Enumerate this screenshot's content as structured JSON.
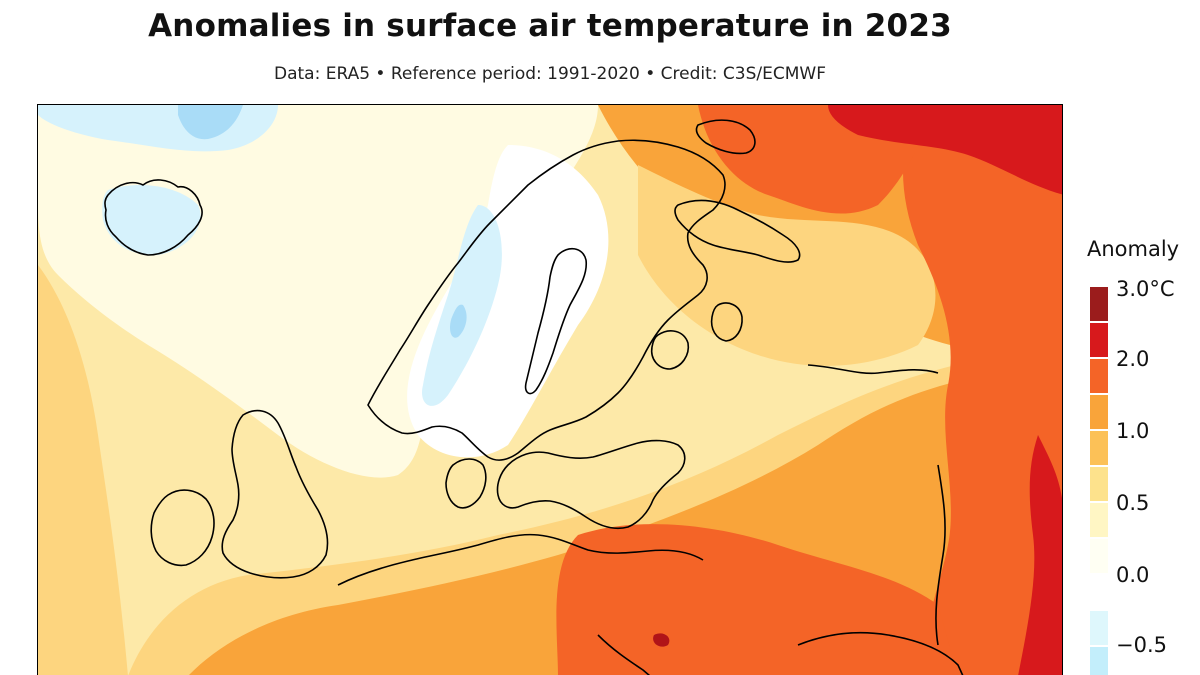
{
  "title": "Anomalies in surface air temperature in 2023",
  "subtitle": "Data: ERA5 • Reference period: 1991-2020 • Credit: C3S/ECMWF",
  "legend": {
    "title": "Anomaly",
    "labels": [
      "3.0°C",
      "2.0",
      "1.0",
      "0.5",
      "0.0",
      "−0.5"
    ],
    "bins": [
      {
        "from": 2.5,
        "to": 3.0,
        "color": "#9b1c1c"
      },
      {
        "from": 2.0,
        "to": 2.5,
        "color": "#d7191c"
      },
      {
        "from": 1.5,
        "to": 2.0,
        "color": "#f46427"
      },
      {
        "from": 1.0,
        "to": 1.5,
        "color": "#f9a43a"
      },
      {
        "from": 0.75,
        "to": 1.0,
        "color": "#fcc157"
      },
      {
        "from": 0.5,
        "to": 0.75,
        "color": "#fde28c"
      },
      {
        "from": 0.25,
        "to": 0.5,
        "color": "#fff6c4"
      },
      {
        "from": 0.0,
        "to": 0.25,
        "color": "#fffff3"
      },
      {
        "from": -0.25,
        "to": 0.0,
        "color": "#ffffff"
      },
      {
        "from": -0.5,
        "to": -0.25,
        "color": "#def7fc"
      },
      {
        "from": -0.75,
        "to": -0.5,
        "color": "#c3eefb"
      }
    ]
  },
  "map": {
    "region": "Northern and Central Europe",
    "colors": {
      "cold": "#a9dcf7",
      "cool": "#d6f2fc",
      "neutral": "#ffffff",
      "near_zero": "#fffbe2",
      "light_yellow": "#fde9a8",
      "yellow": "#fdd57f",
      "orange_light": "#fbb64e",
      "orange": "#f9a43a",
      "orange_red": "#f46427",
      "red": "#d7191c",
      "dark_red": "#b01418",
      "coast": "#000000"
    }
  }
}
